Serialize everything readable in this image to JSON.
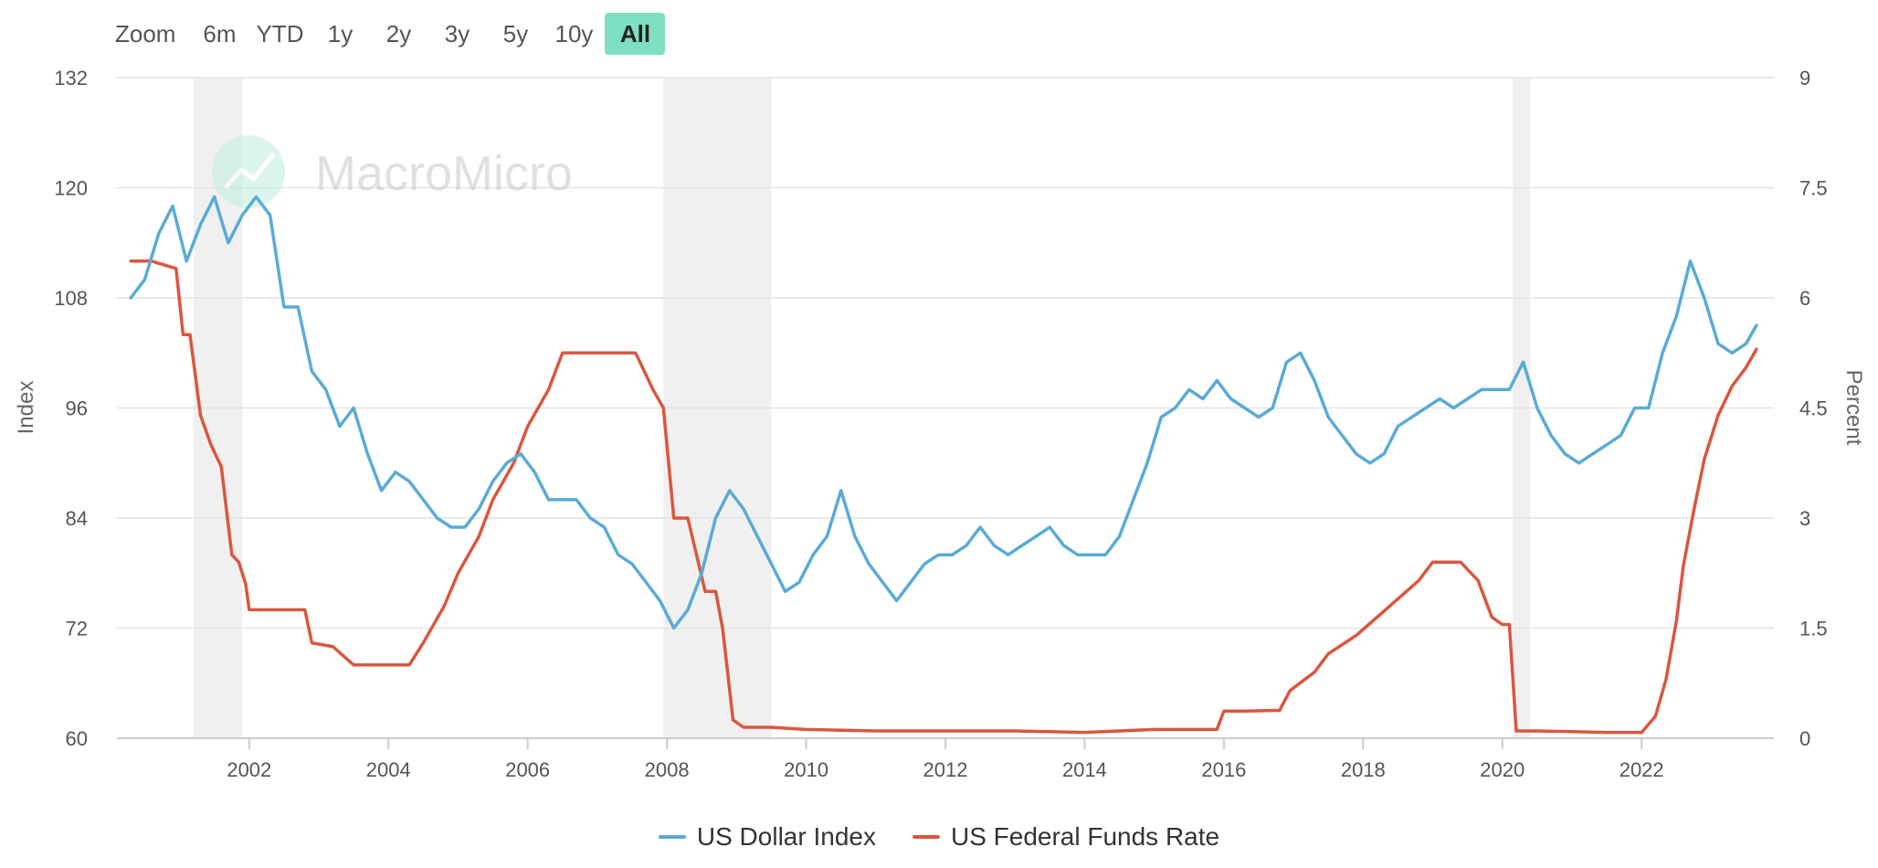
{
  "range_selector": {
    "zoom_label": "Zoom",
    "buttons": [
      "6m",
      "YTD",
      "1y",
      "2y",
      "3y",
      "5y",
      "10y",
      "All"
    ],
    "active": "All"
  },
  "watermark": "MacroMicro",
  "colors": {
    "dollar": "#5aabd6",
    "fed": "#d9573f",
    "recession": "#f0f0f0",
    "grid": "#e3e3e3",
    "active_button": "#7fdfc2"
  },
  "chart_data": {
    "type": "line",
    "x_tick_labels": [
      "2002",
      "2004",
      "2006",
      "2008",
      "2010",
      "2012",
      "2014",
      "2016",
      "2018",
      "2020",
      "2022"
    ],
    "x_ticks": [
      2002,
      2004,
      2006,
      2008,
      2010,
      2012,
      2014,
      2016,
      2018,
      2020,
      2022
    ],
    "xlim": [
      2000.1,
      2023.9
    ],
    "left_axis": {
      "label": "Index",
      "ylim": [
        60,
        132
      ],
      "ticks": [
        60,
        72,
        84,
        96,
        108,
        120,
        132
      ],
      "tick_labels": [
        "60",
        "72",
        "84",
        "96",
        "108",
        "120",
        "132"
      ]
    },
    "right_axis": {
      "label": "Percent",
      "ylim": [
        0,
        9
      ],
      "ticks": [
        0,
        1.5,
        3,
        4.5,
        6,
        7.5,
        9
      ],
      "tick_labels": [
        "0",
        "1.5",
        "3",
        "4.5",
        "6",
        "7.5",
        "9"
      ]
    },
    "recessions": [
      [
        2001.2,
        2001.9
      ],
      [
        2007.95,
        2009.5
      ],
      [
        2020.15,
        2020.4
      ]
    ],
    "series": [
      {
        "name": "US Dollar Index",
        "axis": "left",
        "x": [
          2000.3,
          2000.5,
          2000.7,
          2000.9,
          2001.1,
          2001.3,
          2001.5,
          2001.7,
          2001.9,
          2002.1,
          2002.3,
          2002.5,
          2002.7,
          2002.9,
          2003.1,
          2003.3,
          2003.5,
          2003.7,
          2003.9,
          2004.1,
          2004.3,
          2004.5,
          2004.7,
          2004.9,
          2005.1,
          2005.3,
          2005.5,
          2005.7,
          2005.9,
          2006.1,
          2006.3,
          2006.5,
          2006.7,
          2006.9,
          2007.1,
          2007.3,
          2007.5,
          2007.7,
          2007.9,
          2008.1,
          2008.3,
          2008.5,
          2008.7,
          2008.9,
          2009.1,
          2009.3,
          2009.5,
          2009.7,
          2009.9,
          2010.1,
          2010.3,
          2010.5,
          2010.7,
          2010.9,
          2011.1,
          2011.3,
          2011.5,
          2011.7,
          2011.9,
          2012.1,
          2012.3,
          2012.5,
          2012.7,
          2012.9,
          2013.1,
          2013.3,
          2013.5,
          2013.7,
          2013.9,
          2014.1,
          2014.3,
          2014.5,
          2014.7,
          2014.9,
          2015.1,
          2015.3,
          2015.5,
          2015.7,
          2015.9,
          2016.1,
          2016.3,
          2016.5,
          2016.7,
          2016.9,
          2017.1,
          2017.3,
          2017.5,
          2017.7,
          2017.9,
          2018.1,
          2018.3,
          2018.5,
          2018.7,
          2018.9,
          2019.1,
          2019.3,
          2019.5,
          2019.7,
          2019.9,
          2020.1,
          2020.3,
          2020.5,
          2020.7,
          2020.9,
          2021.1,
          2021.3,
          2021.5,
          2021.7,
          2021.9,
          2022.1,
          2022.3,
          2022.5,
          2022.7,
          2022.9,
          2023.1,
          2023.3,
          2023.5,
          2023.65
        ],
        "values": [
          108,
          110,
          115,
          118,
          112,
          116,
          119,
          114,
          117,
          119,
          117,
          107,
          107,
          100,
          98,
          94,
          96,
          91,
          87,
          89,
          88,
          86,
          84,
          83,
          83,
          85,
          88,
          90,
          91,
          89,
          86,
          86,
          86,
          84,
          83,
          80,
          79,
          77,
          75,
          72,
          74,
          78,
          84,
          87,
          85,
          82,
          79,
          76,
          77,
          80,
          82,
          87,
          82,
          79,
          77,
          75,
          77,
          79,
          80,
          80,
          81,
          83,
          81,
          80,
          81,
          82,
          83,
          81,
          80,
          80,
          80,
          82,
          86,
          90,
          95,
          96,
          98,
          97,
          99,
          97,
          96,
          95,
          96,
          101,
          102,
          99,
          95,
          93,
          91,
          90,
          91,
          94,
          95,
          96,
          97,
          96,
          97,
          98,
          98,
          98,
          101,
          96,
          93,
          91,
          90,
          91,
          92,
          93,
          96,
          96,
          102,
          106,
          112,
          108,
          103,
          102,
          103,
          105
        ]
      },
      {
        "name": "US Federal Funds Rate",
        "axis": "right",
        "x": [
          2000.3,
          2000.6,
          2000.95,
          2001.05,
          2001.15,
          2001.3,
          2001.45,
          2001.6,
          2001.75,
          2001.85,
          2001.95,
          2002.0,
          2002.3,
          2002.6,
          2002.8,
          2002.9,
          2003.2,
          2003.5,
          2003.8,
          2004.0,
          2004.3,
          2004.5,
          2004.8,
          2005.0,
          2005.3,
          2005.5,
          2005.8,
          2006.0,
          2006.3,
          2006.5,
          2006.8,
          2007.2,
          2007.55,
          2007.8,
          2007.95,
          2008.1,
          2008.3,
          2008.55,
          2008.7,
          2008.8,
          2008.95,
          2009.1,
          2009.5,
          2010.0,
          2011.0,
          2012.0,
          2013.0,
          2014.0,
          2015.0,
          2015.9,
          2016.0,
          2016.3,
          2016.8,
          2016.95,
          2017.3,
          2017.5,
          2017.9,
          2018.2,
          2018.5,
          2018.8,
          2019.0,
          2019.4,
          2019.65,
          2019.85,
          2020.0,
          2020.1,
          2020.2,
          2020.5,
          2021.0,
          2021.5,
          2022.0,
          2022.2,
          2022.35,
          2022.5,
          2022.6,
          2022.75,
          2022.9,
          2023.1,
          2023.3,
          2023.5,
          2023.65
        ],
        "values": [
          6.5,
          6.5,
          6.4,
          5.5,
          5.5,
          4.4,
          4.0,
          3.7,
          2.5,
          2.4,
          2.1,
          1.75,
          1.75,
          1.75,
          1.75,
          1.3,
          1.25,
          1.0,
          1.0,
          1.0,
          1.0,
          1.3,
          1.8,
          2.25,
          2.75,
          3.25,
          3.75,
          4.25,
          4.75,
          5.25,
          5.25,
          5.25,
          5.25,
          4.75,
          4.5,
          3.0,
          3.0,
          2.0,
          2.0,
          1.5,
          0.25,
          0.15,
          0.15,
          0.12,
          0.1,
          0.1,
          0.1,
          0.08,
          0.12,
          0.12,
          0.37,
          0.37,
          0.38,
          0.65,
          0.9,
          1.15,
          1.4,
          1.65,
          1.9,
          2.15,
          2.4,
          2.4,
          2.15,
          1.65,
          1.55,
          1.55,
          0.1,
          0.1,
          0.09,
          0.08,
          0.08,
          0.3,
          0.8,
          1.6,
          2.35,
          3.1,
          3.8,
          4.4,
          4.8,
          5.05,
          5.3
        ]
      }
    ]
  }
}
